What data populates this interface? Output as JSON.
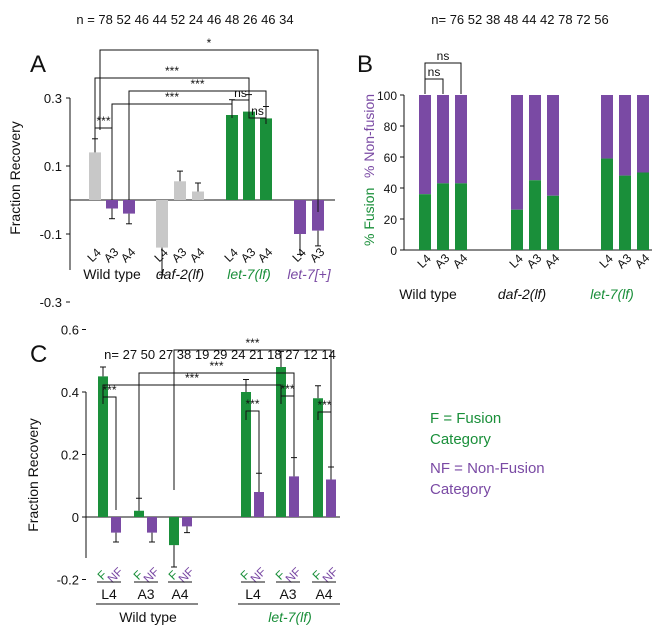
{
  "colors": {
    "green": "#1a8f3a",
    "purple": "#7a4aa4",
    "grey": "#c8c8c8",
    "black": "#111111"
  },
  "legend_c": {
    "f_line1": "F = Fusion",
    "f_line2": "Category",
    "nf_line1": "NF = Non-Fusion",
    "nf_line2": "Category"
  },
  "chart_data": [
    {
      "panel": "A",
      "type": "bar",
      "n_label": "n = 78 52 46   44 52 24   46 48 26   46 34",
      "ylabel": "Fraction Recovery",
      "yticks": [
        "0.3",
        "0.1",
        "-0.1",
        "-0.3"
      ],
      "ylim": [
        -0.3,
        0.3
      ],
      "bars": [
        {
          "cat": "L4",
          "group": "wt",
          "value": 0.14,
          "err": 0.04,
          "color": "grey"
        },
        {
          "cat": "A3",
          "group": "wt",
          "value": -0.025,
          "err": 0.03,
          "color": "purple"
        },
        {
          "cat": "A4",
          "group": "wt",
          "value": -0.04,
          "err": 0.03,
          "color": "purple"
        },
        {
          "cat": "L4",
          "group": "daf",
          "value": -0.14,
          "err": 0.08,
          "color": "grey"
        },
        {
          "cat": "A3",
          "group": "daf",
          "value": 0.055,
          "err": 0.03,
          "color": "grey"
        },
        {
          "cat": "A4",
          "group": "daf",
          "value": 0.025,
          "err": 0.025,
          "color": "grey"
        },
        {
          "cat": "L4",
          "group": "let7lf",
          "value": 0.25,
          "err": 0.045,
          "color": "green"
        },
        {
          "cat": "A3",
          "group": "let7lf",
          "value": 0.26,
          "err": 0.05,
          "color": "green"
        },
        {
          "cat": "A4",
          "group": "let7lf",
          "value": 0.24,
          "err": 0.035,
          "color": "green"
        },
        {
          "cat": "L4",
          "group": "let7plus",
          "value": -0.1,
          "err": 0.06,
          "color": "purple"
        },
        {
          "cat": "A3",
          "group": "let7plus",
          "value": -0.09,
          "err": 0.045,
          "color": "purple"
        }
      ],
      "groups": [
        {
          "label": "Wild type",
          "color": "black",
          "italic": false
        },
        {
          "label": "daf-2(lf)",
          "color": "black",
          "italic": true
        },
        {
          "label": "let-7(lf)",
          "color": "green",
          "italic": true
        },
        {
          "label": "let-7[+]",
          "color": "purple",
          "italic": true
        }
      ],
      "sig": [
        "***",
        "***",
        "***",
        "***",
        "*",
        "ns",
        "ns"
      ]
    },
    {
      "panel": "B",
      "type": "stacked_bar",
      "n_label": "n= 76 52 38   48 44 42   78 72 56",
      "ylabel_green": "% Fusion",
      "ylabel_purple": "% Non-fusion",
      "yticks": [
        "100",
        "80",
        "60",
        "40",
        "20",
        "0"
      ],
      "ylim": [
        0,
        100
      ],
      "bars": [
        {
          "cat": "L4",
          "fusion": 36
        },
        {
          "cat": "A3",
          "fusion": 43
        },
        {
          "cat": "A4",
          "fusion": 43
        },
        {
          "cat": "L4",
          "fusion": 26
        },
        {
          "cat": "A3",
          "fusion": 45
        },
        {
          "cat": "A4",
          "fusion": 35
        },
        {
          "cat": "L4",
          "fusion": 59
        },
        {
          "cat": "A3",
          "fusion": 48
        },
        {
          "cat": "A4",
          "fusion": 50
        }
      ],
      "groups": [
        {
          "label": "Wild type",
          "color": "black",
          "italic": false
        },
        {
          "label": "daf-2(lf)",
          "color": "black",
          "italic": true
        },
        {
          "label": "let-7(lf)",
          "color": "green",
          "italic": true
        }
      ],
      "sig": [
        "ns",
        "ns"
      ]
    },
    {
      "panel": "C",
      "type": "bar",
      "n_label": "n= 27 50  27 38  19 29    24 21  18 27  12 14",
      "ylabel": "Fraction Recovery",
      "yticks": [
        "0.6",
        "0.4",
        "0.2",
        "0",
        "-0.2"
      ],
      "ylim": [
        -0.2,
        0.6
      ],
      "bars": [
        {
          "cat": "F",
          "value": 0.45,
          "err": 0.03,
          "color": "green"
        },
        {
          "cat": "NF",
          "value": -0.05,
          "err": 0.03,
          "color": "purple"
        },
        {
          "cat": "F",
          "value": 0.02,
          "err": 0.04,
          "color": "green"
        },
        {
          "cat": "NF",
          "value": -0.05,
          "err": 0.03,
          "color": "purple"
        },
        {
          "cat": "F",
          "value": -0.09,
          "err": 0.07,
          "color": "green"
        },
        {
          "cat": "NF",
          "value": -0.03,
          "err": 0.02,
          "color": "purple"
        },
        {
          "cat": "F",
          "value": 0.4,
          "err": 0.04,
          "color": "green"
        },
        {
          "cat": "NF",
          "value": 0.08,
          "err": 0.06,
          "color": "purple"
        },
        {
          "cat": "F",
          "value": 0.48,
          "err": 0.05,
          "color": "green"
        },
        {
          "cat": "NF",
          "value": 0.13,
          "err": 0.06,
          "color": "purple"
        },
        {
          "cat": "F",
          "value": 0.38,
          "err": 0.04,
          "color": "green"
        },
        {
          "cat": "NF",
          "value": 0.12,
          "err": 0.04,
          "color": "purple"
        }
      ],
      "stage_labels": [
        "L4",
        "A3",
        "A4",
        "L4",
        "A3",
        "A4"
      ],
      "groups": [
        {
          "label": "Wild type",
          "color": "black",
          "italic": false
        },
        {
          "label": "let-7(lf)",
          "color": "green",
          "italic": true
        }
      ],
      "sig": [
        "***",
        "***",
        "***",
        "***",
        "***",
        "***",
        "***"
      ]
    }
  ]
}
